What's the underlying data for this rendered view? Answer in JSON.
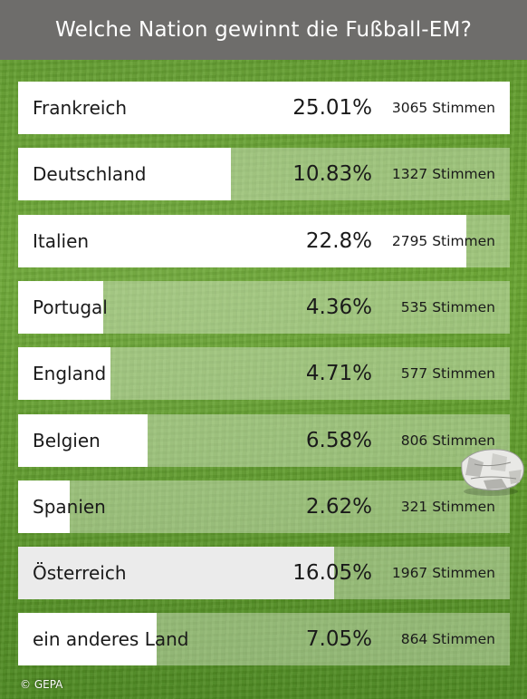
{
  "header": {
    "title": "Welche Nation gewinnt die Fußball-EM?"
  },
  "colors": {
    "header_bg": "#6e6d6b",
    "bar_fill": "#ffffff",
    "bar_fill_highlight": "#ebebeb",
    "background": "grass-green"
  },
  "poll": {
    "options": [
      {
        "label": "Frankreich",
        "percent": "25.01%",
        "votes": "3065 Stimmen",
        "fill_fraction": 1.0
      },
      {
        "label": "Deutschland",
        "percent": "10.83%",
        "votes": "1327 Stimmen",
        "fill_fraction": 0.433
      },
      {
        "label": "Italien",
        "percent": "22.8%",
        "votes": "2795 Stimmen",
        "fill_fraction": 0.912
      },
      {
        "label": "Portugal",
        "percent": "4.36%",
        "votes": "535 Stimmen",
        "fill_fraction": 0.174
      },
      {
        "label": "England",
        "percent": "4.71%",
        "votes": "577 Stimmen",
        "fill_fraction": 0.188
      },
      {
        "label": "Belgien",
        "percent": "6.58%",
        "votes": "806 Stimmen",
        "fill_fraction": 0.263
      },
      {
        "label": "Spanien",
        "percent": "2.62%",
        "votes": "321 Stimmen",
        "fill_fraction": 0.105
      },
      {
        "label": "Österreich",
        "percent": "16.05%",
        "votes": "1967 Stimmen",
        "fill_fraction": 0.642,
        "highlighted": true
      },
      {
        "label": "ein anderes Land",
        "percent": "7.05%",
        "votes": "864 Stimmen",
        "fill_fraction": 0.282
      }
    ]
  },
  "credit": "© GEPA",
  "decoration": {
    "ball_icon": "soccer-ball-icon"
  }
}
